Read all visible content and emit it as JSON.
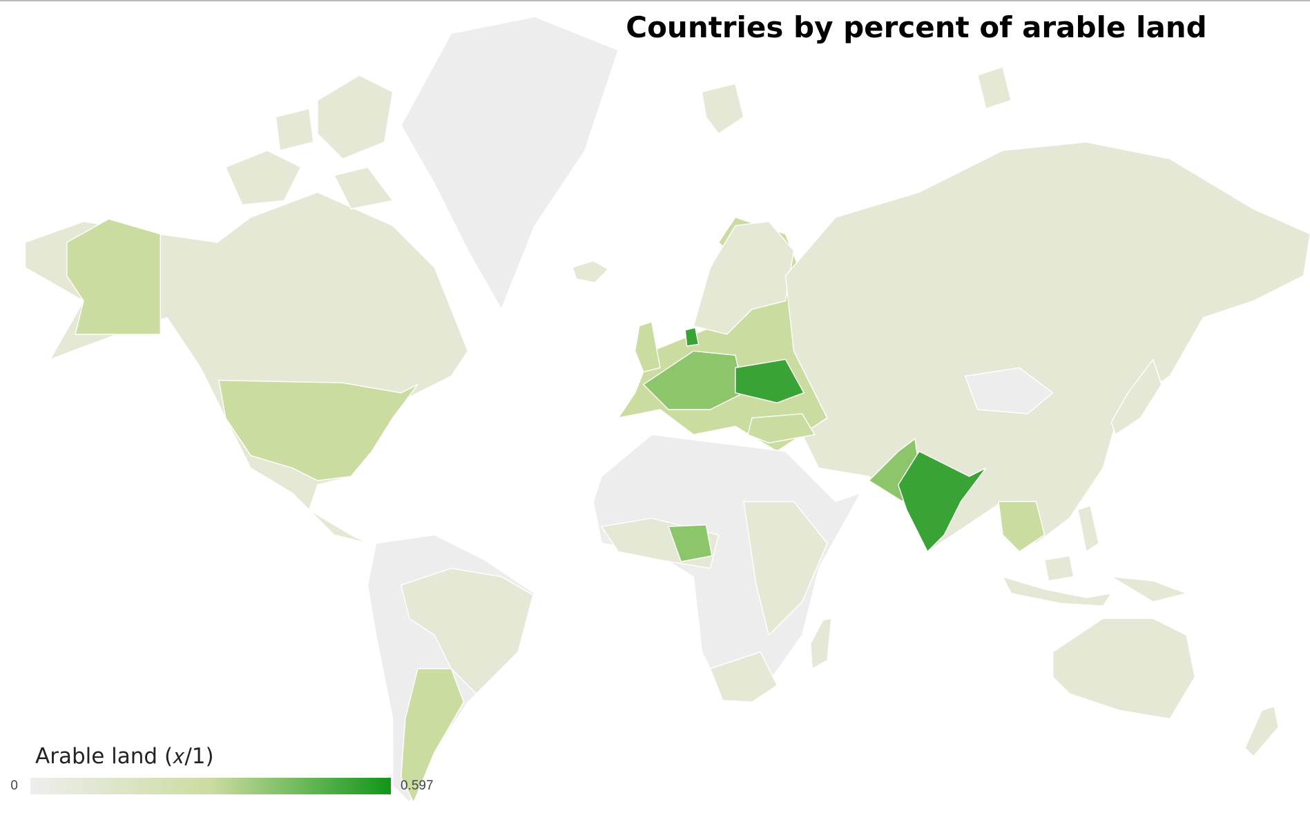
{
  "map": {
    "title": "Countries by percent of arable land",
    "legend": {
      "title": "Arable land (𝑥/1)",
      "min": 0,
      "max": 0.597,
      "colors": [
        "#eeeeee",
        "#cbdca0",
        "#109618"
      ]
    }
  }
}
